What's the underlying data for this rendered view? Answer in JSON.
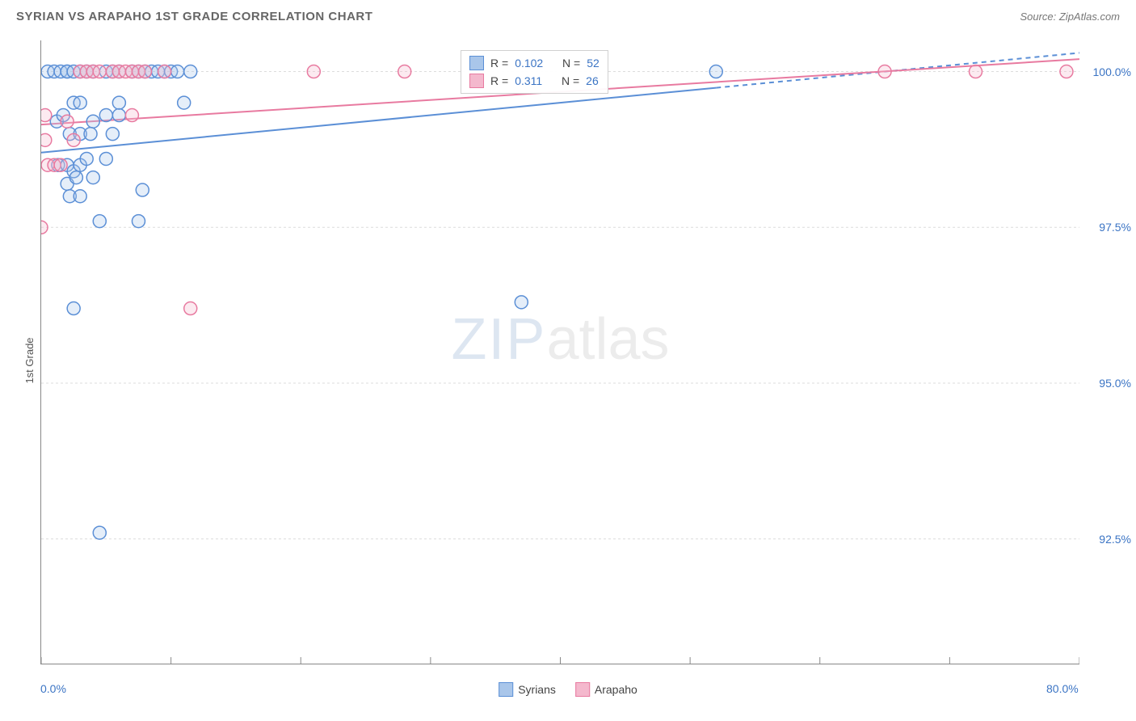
{
  "title": "SYRIAN VS ARAPAHO 1ST GRADE CORRELATION CHART",
  "source": "Source: ZipAtlas.com",
  "y_axis_label": "1st Grade",
  "watermark_zip": "ZIP",
  "watermark_atlas": "atlas",
  "chart": {
    "type": "scatter",
    "xlim": [
      0,
      80
    ],
    "ylim": [
      90.5,
      100.5
    ],
    "x_ticks_major": [
      0,
      80
    ],
    "x_ticks_minor": [
      10,
      20,
      30,
      40,
      50,
      60,
      70
    ],
    "y_ticks": [
      92.5,
      95.0,
      97.5,
      100.0
    ],
    "x_tick_labels": {
      "0": "0.0%",
      "80": "80.0%"
    },
    "y_tick_labels": {
      "92.5": "92.5%",
      "95.0": "95.0%",
      "97.5": "97.5%",
      "100.0": "100.0%"
    },
    "grid_color": "#dcdcdc",
    "grid_dash": "3,3",
    "axis_color": "#888888",
    "background_color": "#ffffff",
    "marker_radius": 8,
    "marker_stroke_width": 1.5,
    "marker_fill_opacity": 0.3,
    "series": [
      {
        "name": "Syrians",
        "color": "#5b8fd6",
        "fill": "#a9c6ea",
        "r_label": "R =",
        "r_value": "0.102",
        "n_label": "N =",
        "n_value": "52",
        "trend": {
          "x1": 0,
          "y1": 98.7,
          "x2": 80,
          "y2": 100.3,
          "dash_after_x": 52
        },
        "points": [
          [
            0.5,
            100.0
          ],
          [
            1.0,
            100.0
          ],
          [
            1.2,
            99.2
          ],
          [
            1.3,
            98.5
          ],
          [
            1.5,
            100.0
          ],
          [
            1.7,
            99.3
          ],
          [
            2.0,
            100.0
          ],
          [
            2.0,
            98.5
          ],
          [
            2.0,
            98.2
          ],
          [
            2.2,
            99.0
          ],
          [
            2.2,
            98.0
          ],
          [
            2.0,
            100.0
          ],
          [
            2.5,
            100.0
          ],
          [
            2.5,
            99.5
          ],
          [
            2.5,
            98.4
          ],
          [
            2.7,
            98.3
          ],
          [
            3.0,
            100.0
          ],
          [
            3.0,
            99.5
          ],
          [
            3.0,
            99.0
          ],
          [
            3.0,
            98.5
          ],
          [
            3.0,
            98.0
          ],
          [
            3.5,
            100.0
          ],
          [
            3.5,
            98.6
          ],
          [
            4.0,
            100.0
          ],
          [
            4.0,
            99.2
          ],
          [
            4.0,
            98.3
          ],
          [
            5.0,
            100.0
          ],
          [
            5.0,
            99.3
          ],
          [
            5.0,
            98.6
          ],
          [
            5.5,
            100.0
          ],
          [
            5.5,
            99.0
          ],
          [
            6.0,
            100.0
          ],
          [
            6.0,
            99.3
          ],
          [
            7.0,
            100.0
          ],
          [
            7.5,
            100.0
          ],
          [
            7.8,
            98.1
          ],
          [
            8.0,
            100.0
          ],
          [
            8.5,
            100.0
          ],
          [
            9.0,
            100.0
          ],
          [
            9.5,
            100.0
          ],
          [
            10.0,
            100.0
          ],
          [
            10.5,
            100.0
          ],
          [
            11.0,
            99.5
          ],
          [
            11.5,
            100.0
          ],
          [
            4.5,
            97.6
          ],
          [
            7.5,
            97.6
          ],
          [
            2.5,
            96.2
          ],
          [
            4.5,
            92.6
          ],
          [
            37.0,
            96.3
          ],
          [
            52.0,
            100.0
          ],
          [
            6.0,
            99.5
          ],
          [
            3.8,
            99.0
          ]
        ]
      },
      {
        "name": "Arapaho",
        "color": "#e87aa0",
        "fill": "#f4b8cd",
        "r_label": "R =",
        "r_value": "0.311",
        "n_label": "N =",
        "n_value": "26",
        "trend": {
          "x1": 0,
          "y1": 99.15,
          "x2": 80,
          "y2": 100.2,
          "dash_after_x": null
        },
        "points": [
          [
            0.0,
            97.5
          ],
          [
            0.3,
            99.3
          ],
          [
            0.3,
            98.9
          ],
          [
            0.5,
            98.5
          ],
          [
            1.0,
            98.5
          ],
          [
            1.5,
            98.5
          ],
          [
            2.0,
            99.2
          ],
          [
            2.5,
            98.9
          ],
          [
            3.0,
            100.0
          ],
          [
            3.5,
            100.0
          ],
          [
            4.0,
            100.0
          ],
          [
            4.5,
            100.0
          ],
          [
            5.5,
            100.0
          ],
          [
            6.0,
            100.0
          ],
          [
            6.5,
            100.0
          ],
          [
            7.0,
            100.0
          ],
          [
            7.0,
            99.3
          ],
          [
            7.5,
            100.0
          ],
          [
            8.0,
            100.0
          ],
          [
            9.5,
            100.0
          ],
          [
            21.0,
            100.0
          ],
          [
            28.0,
            100.0
          ],
          [
            65.0,
            100.0
          ],
          [
            72.0,
            100.0
          ],
          [
            79.0,
            100.0
          ],
          [
            11.5,
            96.2
          ]
        ]
      }
    ]
  },
  "legend_bottom": [
    {
      "label": "Syrians",
      "fill": "#a9c6ea",
      "stroke": "#5b8fd6"
    },
    {
      "label": "Arapaho",
      "fill": "#f4b8cd",
      "stroke": "#e87aa0"
    }
  ]
}
